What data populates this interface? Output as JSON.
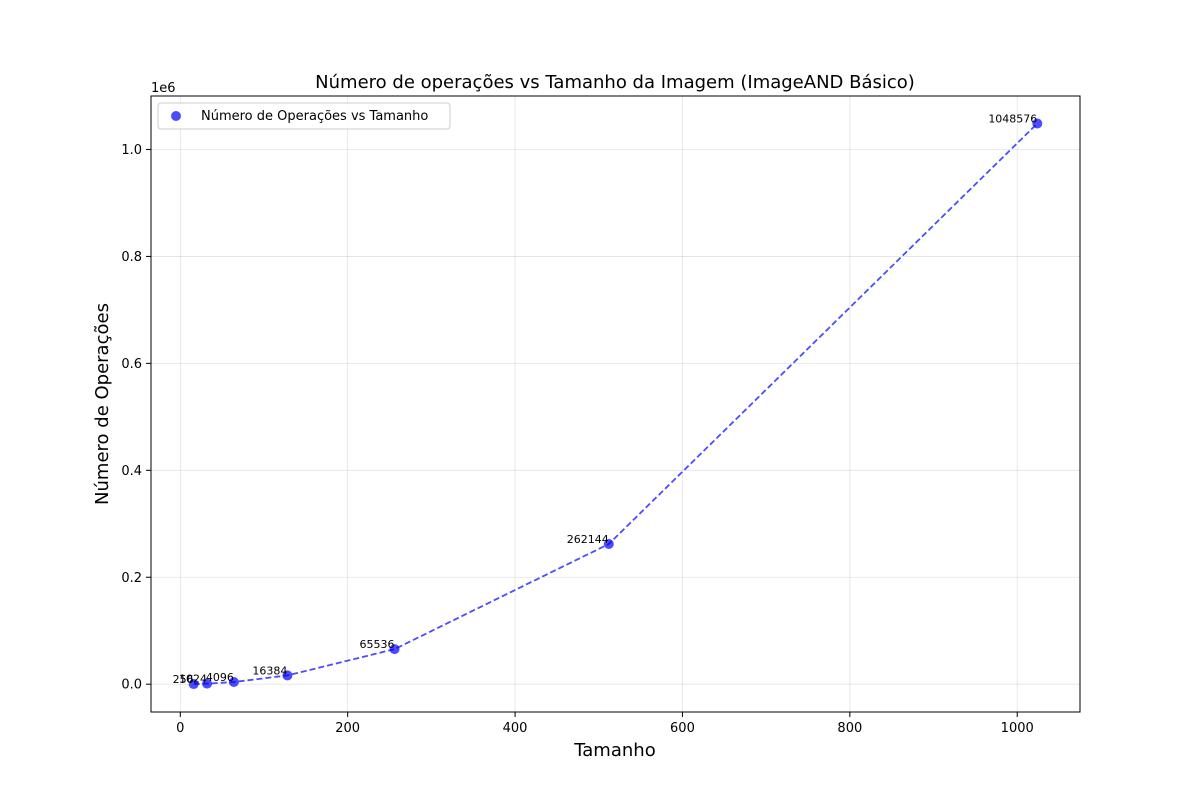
{
  "chart_data": {
    "type": "scatter",
    "title": "Número de operações vs Tamanho da Imagem (ImageAND Básico)",
    "xlabel": "Tamanho",
    "ylabel": "Número de Operações",
    "y_offset_label": "1e6",
    "xlim": [
      -35,
      1075
    ],
    "ylim": [
      -52000,
      1100000
    ],
    "xticks": [
      0,
      200,
      400,
      600,
      800,
      1000
    ],
    "xtick_labels": [
      "0",
      "200",
      "400",
      "600",
      "800",
      "1000"
    ],
    "yticks": [
      0,
      200000,
      400000,
      600000,
      800000,
      1000000
    ],
    "ytick_labels": [
      "0.0",
      "0.2",
      "0.4",
      "0.6",
      "0.8",
      "1.0"
    ],
    "grid": true,
    "legend_position": "top-left",
    "series": [
      {
        "name": "Número de Operações vs Tamanho",
        "color": "#0000ff",
        "line_style": "dashed",
        "x": [
          16,
          32,
          64,
          128,
          256,
          512,
          1024
        ],
        "y": [
          256,
          1024,
          4096,
          16384,
          65536,
          262144,
          1048576
        ],
        "point_labels": [
          "256",
          "1024",
          "4096",
          "16384",
          "65536",
          "262144",
          "1048576"
        ]
      }
    ]
  }
}
